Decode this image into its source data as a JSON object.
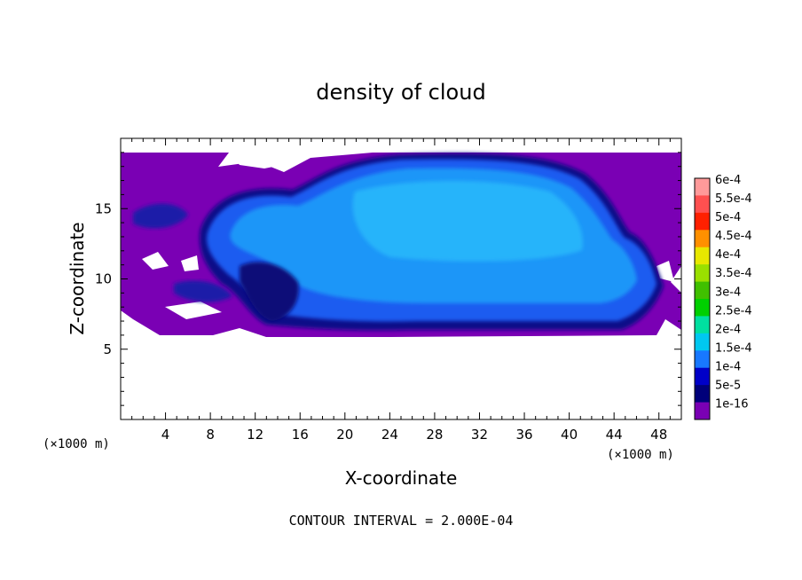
{
  "chart_data": {
    "type": "heatmap",
    "title": "density of cloud",
    "xlabel": "X-coordinate",
    "ylabel": "Z-coordinate",
    "x_unit_left": "(×1000 m)",
    "x_unit_right": "(×1000 m)",
    "xlim": [
      0,
      50
    ],
    "ylim": [
      0,
      20
    ],
    "x_ticks": [
      4,
      8,
      12,
      16,
      20,
      24,
      28,
      32,
      36,
      40,
      44,
      48
    ],
    "y_ticks": [
      5,
      10,
      15
    ],
    "contour_note": "CONTOUR INTERVAL = 2.000E-04",
    "colorbar": {
      "labels": [
        "6e-4",
        "5.5e-4",
        "5e-4",
        "4.5e-4",
        "4e-4",
        "3.5e-4",
        "3e-4",
        "2.5e-4",
        "2e-4",
        "1.5e-4",
        "1e-4",
        "5e-5",
        "1e-16"
      ],
      "colors": [
        "#ff9a9a",
        "#ff5050",
        "#ff2000",
        "#ff9000",
        "#e8e800",
        "#9ae000",
        "#40c000",
        "#00d000",
        "#00e0a0",
        "#00c8f0",
        "#1878ff",
        "#0000c8",
        "#00007a",
        "#7a00b4"
      ]
    },
    "field_description_levels": {
      "background_min": "1e-16",
      "core_max": "1.5e-4"
    }
  }
}
